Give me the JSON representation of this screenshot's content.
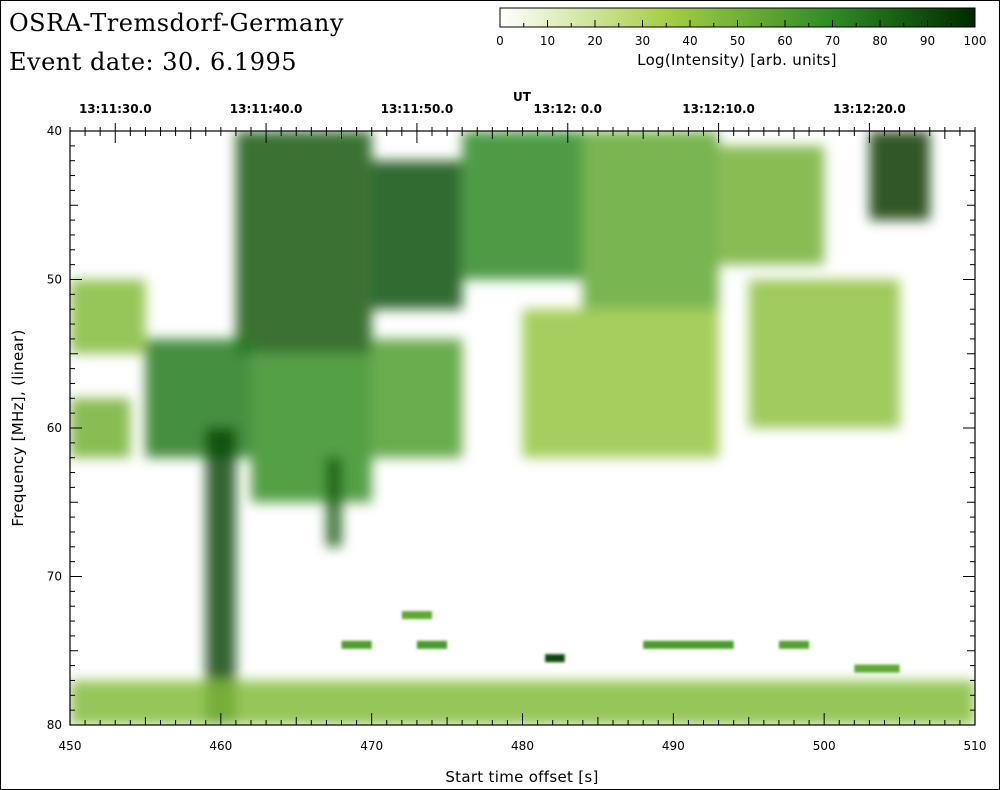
{
  "header": {
    "observatory": "OSRA-Tremsdorf-Germany",
    "event_date": "Event date: 30. 6.1995"
  },
  "colors": {
    "low": "#ffffff",
    "mid": "#7fbf1f",
    "high": "#1f7a1f",
    "max": "#003000"
  },
  "chart_data": {
    "type": "heatmap",
    "title": "",
    "xlabel": "Start time offset [s]",
    "ylabel": "Frequency [MHz], (linear)",
    "x_range": [
      450,
      510
    ],
    "y_range": [
      40,
      80
    ],
    "y_inverted": true,
    "x_ticks": [
      450,
      460,
      470,
      480,
      490,
      500,
      510
    ],
    "x_tick_labels": [
      "450",
      "460",
      "470",
      "480",
      "490",
      "500",
      "510"
    ],
    "y_ticks": [
      40,
      50,
      60,
      70,
      80
    ],
    "y_tick_labels": [
      "40",
      "50",
      "60",
      "70",
      "80"
    ],
    "top_axis": {
      "label": "UT",
      "tick_offsets": [
        453,
        463,
        473,
        483,
        493,
        503
      ],
      "tick_labels": [
        "13:11:30.0",
        "13:11:40.0",
        "13:11:50.0",
        "13:12: 0.0",
        "13:12:10.0",
        "13:12:20.0"
      ]
    },
    "colorbar": {
      "label": "Log(Intensity) [arb. units]",
      "range": [
        0,
        100
      ],
      "ticks": [
        0,
        10,
        20,
        30,
        40,
        50,
        60,
        70,
        80,
        90,
        100
      ],
      "tick_labels": [
        "0",
        "10",
        "20",
        "30",
        "40",
        "50",
        "60",
        "70",
        "80",
        "90",
        "100"
      ]
    },
    "regions": [
      {
        "t0": 461,
        "t1": 470,
        "f0": 40,
        "f1": 55,
        "level": 85
      },
      {
        "t0": 470,
        "t1": 476,
        "f0": 42,
        "f1": 52,
        "level": 88
      },
      {
        "t0": 476,
        "t1": 484,
        "f0": 40,
        "f1": 50,
        "level": 70
      },
      {
        "t0": 484,
        "t1": 493,
        "f0": 40,
        "f1": 52,
        "level": 55
      },
      {
        "t0": 493,
        "t1": 500,
        "f0": 41,
        "f1": 49,
        "level": 50
      },
      {
        "t0": 503,
        "t1": 507,
        "f0": 40,
        "f1": 46,
        "level": 95
      },
      {
        "t0": 455,
        "t1": 462,
        "f0": 54,
        "f1": 62,
        "level": 75
      },
      {
        "t0": 462,
        "t1": 470,
        "f0": 55,
        "f1": 65,
        "level": 68
      },
      {
        "t0": 470,
        "t1": 476,
        "f0": 54,
        "f1": 62,
        "level": 60
      },
      {
        "t0": 450,
        "t1": 455,
        "f0": 50,
        "f1": 55,
        "level": 45
      },
      {
        "t0": 450,
        "t1": 454,
        "f0": 58,
        "f1": 62,
        "level": 50
      },
      {
        "t0": 459,
        "t1": 461,
        "f0": 60,
        "f1": 80,
        "level": 90
      },
      {
        "t0": 480,
        "t1": 493,
        "f0": 52,
        "f1": 62,
        "level": 40
      },
      {
        "t0": 495,
        "t1": 505,
        "f0": 50,
        "f1": 60,
        "level": 42
      },
      {
        "t0": 450,
        "t1": 510,
        "f0": 77,
        "f1": 80,
        "level": 45
      },
      {
        "t0": 467,
        "t1": 468,
        "f0": 62,
        "f1": 68,
        "level": 85
      }
    ],
    "bands": [
      {
        "t0": 472,
        "t1": 474,
        "f": 72.6,
        "level": 55
      },
      {
        "t0": 468,
        "t1": 470,
        "f": 74.6,
        "level": 60
      },
      {
        "t0": 473,
        "t1": 475,
        "f": 74.6,
        "level": 62
      },
      {
        "t0": 488,
        "t1": 494,
        "f": 74.6,
        "level": 62
      },
      {
        "t0": 497,
        "t1": 499,
        "f": 74.6,
        "level": 58
      },
      {
        "t0": 502,
        "t1": 505,
        "f": 76.2,
        "level": 55
      },
      {
        "t0": 481.5,
        "t1": 482.8,
        "f": 75.5,
        "level": 90
      }
    ]
  }
}
